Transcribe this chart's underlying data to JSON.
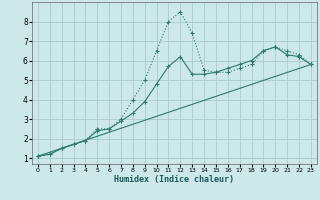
{
  "title": "",
  "xlabel": "Humidex (Indice chaleur)",
  "bg_color": "#cce8e8",
  "grid_color": "#aacccc",
  "line_color": "#2d7a6e",
  "xlim": [
    -0.5,
    23.5
  ],
  "ylim": [
    0.7,
    9.0
  ],
  "xticks": [
    0,
    1,
    2,
    3,
    4,
    5,
    6,
    7,
    8,
    9,
    10,
    11,
    12,
    13,
    14,
    15,
    16,
    17,
    18,
    19,
    20,
    21,
    22,
    23
  ],
  "yticks": [
    1,
    2,
    3,
    4,
    5,
    6,
    7,
    8
  ],
  "series1_x": [
    0,
    1,
    2,
    3,
    4,
    5,
    6,
    7,
    8,
    9,
    10,
    11,
    12,
    13,
    14,
    15,
    16,
    17,
    18,
    19,
    20,
    21,
    22,
    23
  ],
  "series1_y": [
    1.1,
    1.2,
    1.5,
    1.7,
    1.9,
    2.5,
    2.5,
    3.0,
    4.0,
    5.0,
    6.5,
    8.0,
    8.5,
    7.4,
    5.5,
    5.4,
    5.4,
    5.6,
    5.8,
    6.5,
    6.7,
    6.5,
    6.3,
    5.8
  ],
  "series2_x": [
    0,
    1,
    2,
    3,
    4,
    5,
    6,
    7,
    8,
    9,
    10,
    11,
    12,
    13,
    14,
    15,
    16,
    17,
    18,
    19,
    20,
    21,
    22,
    23
  ],
  "series2_y": [
    1.1,
    1.2,
    1.5,
    1.7,
    1.9,
    2.4,
    2.5,
    2.9,
    3.3,
    3.9,
    4.8,
    5.7,
    6.2,
    5.3,
    5.3,
    5.4,
    5.6,
    5.8,
    6.0,
    6.5,
    6.7,
    6.3,
    6.2,
    5.8
  ],
  "series3_x": [
    0,
    23
  ],
  "series3_y": [
    1.1,
    5.8
  ]
}
